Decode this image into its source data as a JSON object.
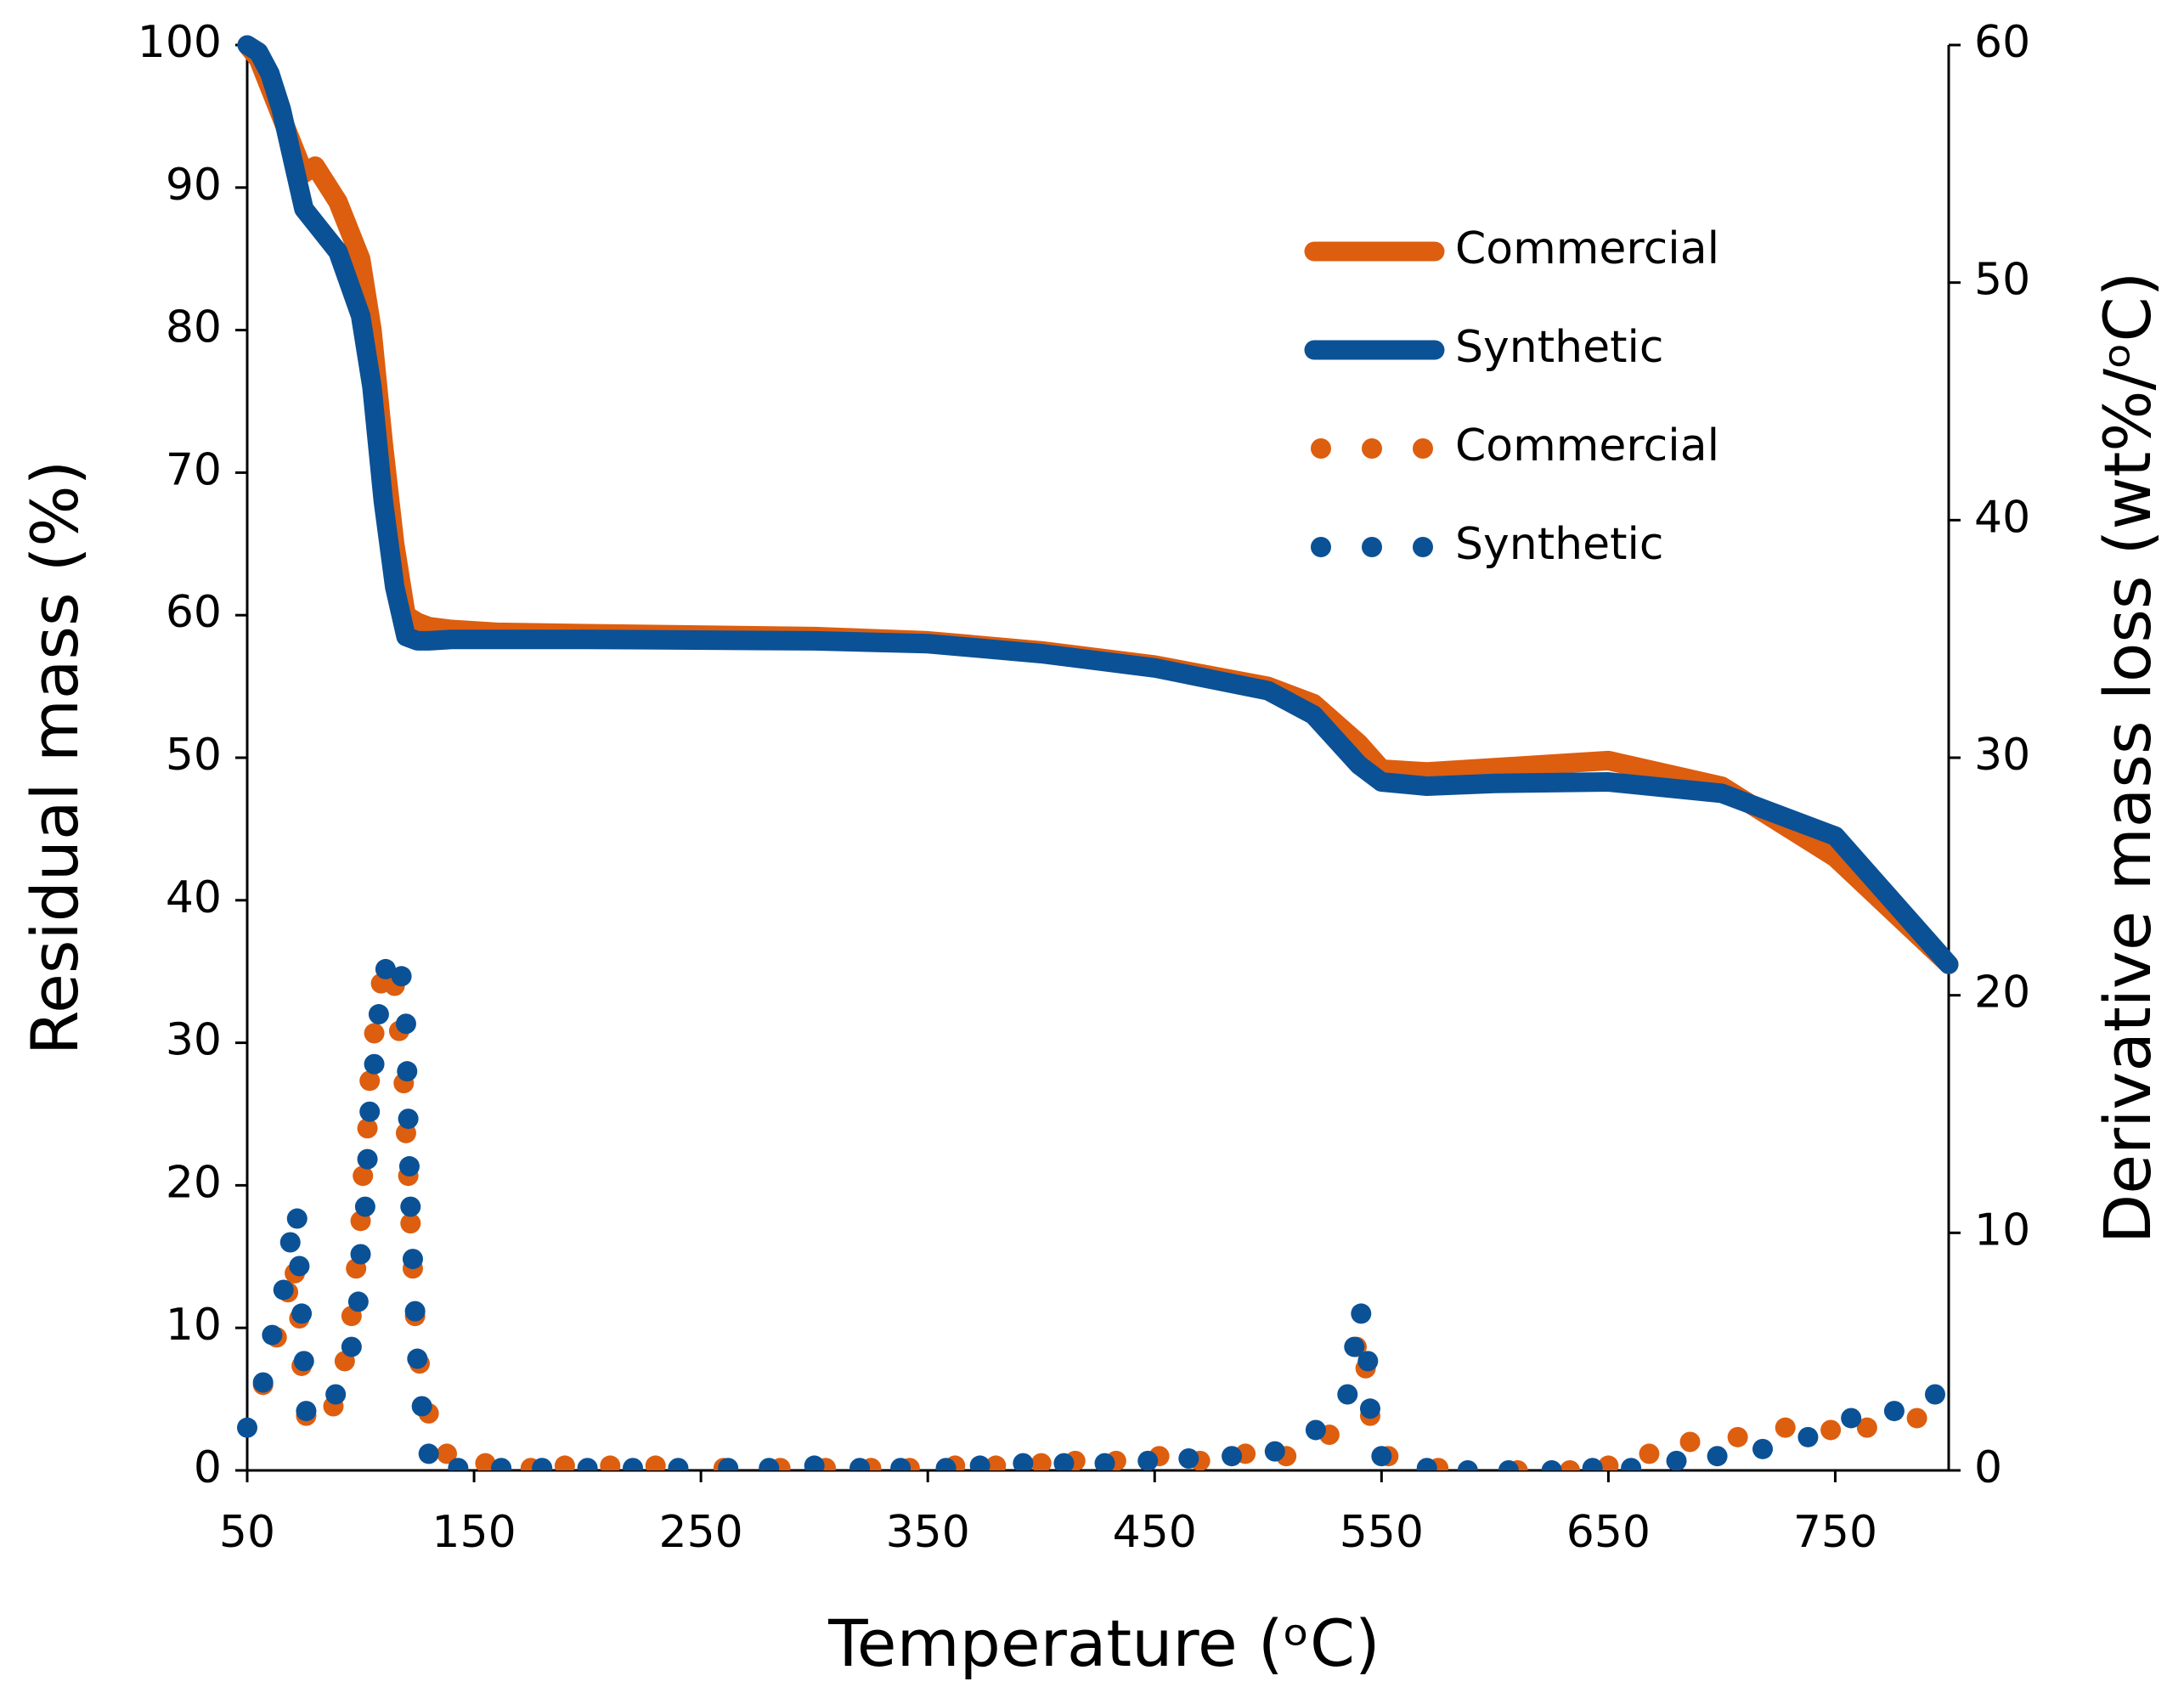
{
  "chart_data": {
    "type": "line",
    "x_label": "Temperature (ᵒC)",
    "y_label": "Residual mass (%)",
    "y2_label": "Derivative mass loss (wt%/ᵒC)",
    "xlim": [
      50,
      800
    ],
    "xticks": [
      50,
      150,
      250,
      350,
      450,
      550,
      650,
      750
    ],
    "ylim": [
      0,
      100
    ],
    "yticks": [
      0,
      10,
      20,
      30,
      40,
      50,
      60,
      70,
      80,
      90,
      100
    ],
    "y2lim": [
      0,
      60
    ],
    "y2ticks": [
      0,
      10,
      20,
      30,
      40,
      50,
      60
    ],
    "grid": false,
    "legend": "upper right",
    "series": [
      {
        "name": "Commercial",
        "type": "line",
        "color": "#dd5e0f",
        "x": [
          50,
          55,
          60,
          65,
          70,
          75,
          80,
          90,
          100,
          105,
          110,
          115,
          120,
          125,
          130,
          140,
          160,
          200,
          300,
          350,
          400,
          450,
          500,
          520,
          540,
          550,
          570,
          600,
          650,
          700,
          750,
          800
        ],
        "values": [
          100,
          99,
          97,
          95,
          93,
          91,
          91.5,
          89,
          85,
          80,
          72,
          65,
          60,
          59.5,
          59.2,
          59,
          58.8,
          58.7,
          58.5,
          58.2,
          57.5,
          56.5,
          55,
          53.8,
          51,
          49.2,
          49,
          49.3,
          49.8,
          48,
          43,
          35.5
        ]
      },
      {
        "name": "Synthetic",
        "type": "line",
        "color": "#0b5196",
        "x": [
          50,
          55,
          60,
          65,
          70,
          75,
          80,
          90,
          100,
          105,
          110,
          115,
          120,
          125,
          130,
          140,
          160,
          200,
          300,
          350,
          400,
          450,
          500,
          520,
          540,
          550,
          570,
          600,
          650,
          700,
          750,
          800
        ],
        "values": [
          100,
          99.5,
          98,
          95.5,
          92,
          88.5,
          87.5,
          85.5,
          81,
          76,
          68,
          62,
          58.5,
          58.2,
          58.2,
          58.3,
          58.3,
          58.3,
          58.2,
          58,
          57.3,
          56.3,
          54.7,
          53,
          49.5,
          48.3,
          48,
          48.2,
          48.3,
          47.5,
          44.5,
          35.5
        ]
      },
      {
        "name": "Commercial",
        "type": "scatter",
        "axis": "y2",
        "color": "#dd5e0f",
        "x": [
          57,
          63,
          68,
          71,
          73,
          74,
          76,
          88,
          93,
          96,
          98,
          100,
          101,
          103,
          104,
          106,
          109,
          115,
          117,
          119,
          120,
          121,
          122,
          123,
          124,
          126,
          130,
          138,
          155,
          175,
          190,
          210,
          230,
          260,
          285,
          305,
          325,
          342,
          362,
          380,
          400,
          415,
          433,
          452,
          470,
          490,
          508,
          527,
          539,
          543,
          545,
          553,
          575,
          610,
          633,
          650,
          668,
          686,
          707,
          728,
          748,
          764,
          786
        ],
        "values": [
          3.6,
          5.6,
          7.5,
          8.3,
          6.4,
          4.4,
          2.3,
          2.7,
          4.6,
          6.5,
          8.5,
          10.5,
          12.4,
          14.4,
          16.4,
          18.4,
          20.5,
          20.4,
          18.5,
          16.3,
          14.2,
          12.4,
          10.4,
          8.5,
          6.5,
          4.5,
          2.4,
          0.7,
          0.3,
          0.1,
          0.2,
          0.2,
          0.2,
          0.1,
          0.1,
          0.1,
          0.1,
          0.1,
          0.2,
          0.2,
          0.3,
          0.4,
          0.4,
          0.6,
          0.4,
          0.7,
          0.6,
          1.5,
          5.2,
          4.3,
          2.3,
          0.6,
          0.1,
          0,
          0,
          0.2,
          0.7,
          1.2,
          1.4,
          1.8,
          1.7,
          1.8,
          2.2
        ]
      },
      {
        "name": "Synthetic",
        "type": "scatter",
        "axis": "y2",
        "color": "#0b5196",
        "x": [
          50,
          57,
          61,
          66,
          69,
          72,
          73,
          74,
          75,
          76,
          89,
          96,
          99,
          100,
          102,
          103,
          104,
          106,
          108,
          111,
          118,
          120,
          120.5,
          121,
          121.5,
          122,
          123,
          124,
          125,
          127,
          130,
          143,
          162,
          180,
          200,
          220,
          240,
          262,
          280,
          300,
          320,
          338,
          358,
          373,
          392,
          410,
          428,
          447,
          465,
          484,
          503,
          521,
          535,
          538,
          541,
          544,
          545,
          550,
          570,
          588,
          606,
          625,
          643,
          660,
          680,
          698,
          718,
          738,
          757,
          776,
          794
        ],
        "values": [
          1.8,
          3.7,
          5.7,
          7.6,
          9.6,
          10.6,
          8.6,
          6.6,
          4.6,
          2.5,
          3.2,
          5.2,
          7.1,
          9.1,
          11.1,
          13.1,
          15.1,
          17.1,
          19.2,
          21.1,
          20.8,
          18.8,
          16.8,
          14.8,
          12.8,
          11.1,
          8.9,
          6.7,
          4.7,
          2.7,
          0.7,
          0.1,
          0.1,
          0.1,
          0.1,
          0.1,
          0.1,
          0.1,
          0.1,
          0.2,
          0.1,
          0.1,
          0.1,
          0.2,
          0.3,
          0.3,
          0.3,
          0.4,
          0.5,
          0.6,
          0.8,
          1.7,
          3.2,
          5.2,
          6.6,
          4.6,
          2.6,
          0.6,
          0.1,
          0,
          0,
          0,
          0.1,
          0.1,
          0.4,
          0.6,
          0.9,
          1.4,
          2.2,
          2.5,
          3.2
        ]
      }
    ]
  }
}
